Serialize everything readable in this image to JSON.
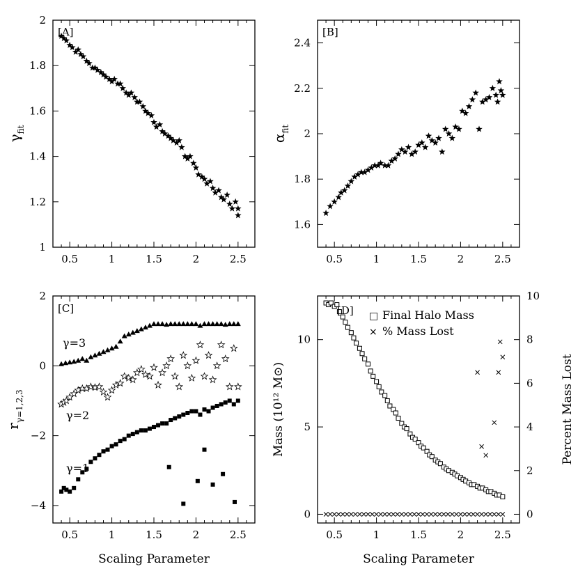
{
  "chart_data": [
    {
      "panel": "A",
      "type": "scatter",
      "label": "[A]",
      "xlabel": "",
      "ylabel": "γ_fit",
      "ylabel_main": "γ",
      "ylabel_sub": "fit",
      "xlim": [
        0.3,
        2.7
      ],
      "ylim": [
        1.0,
        2.0
      ],
      "xticks": [
        0.5,
        1,
        1.5,
        2,
        2.5
      ],
      "xtick_labels": [
        "0.5",
        "1",
        "1.5",
        "2",
        "2.5"
      ],
      "yticks": [
        1,
        1.2,
        1.4,
        1.6,
        1.8,
        2
      ],
      "ytick_labels": [
        "1",
        "1.2",
        "1.4",
        "1.6",
        "1.8",
        "2"
      ],
      "series": [
        {
          "name": "gamma_fit",
          "marker": "star",
          "x": [
            0.4,
            0.43,
            0.46,
            0.5,
            0.53,
            0.57,
            0.6,
            0.63,
            0.66,
            0.7,
            0.73,
            0.77,
            0.8,
            0.83,
            0.87,
            0.9,
            0.93,
            0.97,
            1.0,
            1.03,
            1.07,
            1.1,
            1.13,
            1.17,
            1.2,
            1.23,
            1.27,
            1.3,
            1.33,
            1.37,
            1.4,
            1.43,
            1.47,
            1.5,
            1.53,
            1.57,
            1.6,
            1.63,
            1.67,
            1.7,
            1.73,
            1.77,
            1.8,
            1.83,
            1.87,
            1.9,
            1.93,
            1.97,
            2.0,
            2.03,
            2.07,
            2.1,
            2.13,
            2.17,
            2.2,
            2.23,
            2.27,
            2.3,
            2.33,
            2.37,
            2.4,
            2.43,
            2.47,
            2.5,
            2.5
          ],
          "y": [
            1.93,
            1.92,
            1.91,
            1.89,
            1.88,
            1.86,
            1.87,
            1.85,
            1.84,
            1.82,
            1.81,
            1.79,
            1.79,
            1.78,
            1.77,
            1.76,
            1.75,
            1.74,
            1.73,
            1.74,
            1.72,
            1.72,
            1.7,
            1.68,
            1.67,
            1.68,
            1.66,
            1.64,
            1.64,
            1.62,
            1.6,
            1.59,
            1.58,
            1.55,
            1.53,
            1.54,
            1.51,
            1.5,
            1.49,
            1.48,
            1.47,
            1.46,
            1.47,
            1.44,
            1.4,
            1.39,
            1.4,
            1.37,
            1.35,
            1.32,
            1.31,
            1.3,
            1.28,
            1.29,
            1.26,
            1.24,
            1.25,
            1.22,
            1.21,
            1.23,
            1.19,
            1.17,
            1.2,
            1.14,
            1.17
          ]
        }
      ]
    },
    {
      "panel": "B",
      "type": "scatter",
      "label": "[B]",
      "xlabel": "",
      "ylabel": "α_fit",
      "ylabel_main": "α",
      "ylabel_sub": "fit",
      "xlim": [
        0.3,
        2.7
      ],
      "ylim": [
        1.5,
        2.5
      ],
      "xticks": [
        0.5,
        1,
        1.5,
        2,
        2.5
      ],
      "xtick_labels": [
        "0.5",
        "1",
        "1.5",
        "2",
        "2.5"
      ],
      "yticks": [
        1.6,
        1.8,
        2.0,
        2.2,
        2.4
      ],
      "ytick_labels": [
        "1.6",
        "1.8",
        "2",
        "2.2",
        "2.4"
      ],
      "series": [
        {
          "name": "alpha_fit",
          "marker": "star",
          "x": [
            0.4,
            0.45,
            0.5,
            0.55,
            0.58,
            0.62,
            0.66,
            0.7,
            0.74,
            0.78,
            0.82,
            0.86,
            0.9,
            0.94,
            0.98,
            1.02,
            1.05,
            1.1,
            1.14,
            1.18,
            1.22,
            1.26,
            1.3,
            1.34,
            1.38,
            1.42,
            1.46,
            1.5,
            1.54,
            1.58,
            1.62,
            1.66,
            1.7,
            1.74,
            1.78,
            1.82,
            1.86,
            1.9,
            1.94,
            1.98,
            2.02,
            2.06,
            2.1,
            2.14,
            2.18,
            2.22,
            2.26,
            2.3,
            2.34,
            2.38,
            2.42,
            2.46,
            2.5,
            2.48,
            2.44
          ],
          "y": [
            1.65,
            1.68,
            1.7,
            1.72,
            1.74,
            1.75,
            1.77,
            1.79,
            1.81,
            1.82,
            1.83,
            1.83,
            1.84,
            1.85,
            1.86,
            1.86,
            1.87,
            1.86,
            1.86,
            1.88,
            1.89,
            1.91,
            1.93,
            1.92,
            1.94,
            1.91,
            1.92,
            1.95,
            1.96,
            1.94,
            1.99,
            1.97,
            1.96,
            1.98,
            1.92,
            2.02,
            2.0,
            1.98,
            2.03,
            2.02,
            2.1,
            2.09,
            2.12,
            2.15,
            2.18,
            2.02,
            2.14,
            2.15,
            2.16,
            2.2,
            2.17,
            2.23,
            2.17,
            2.19,
            2.14
          ]
        }
      ]
    },
    {
      "panel": "C",
      "type": "scatter",
      "label": "[C]",
      "xlabel": "Scaling Parameter",
      "ylabel": "r_γ=1,2,3",
      "ylabel_main": "r",
      "ylabel_sub": "γ=1,2,3",
      "xlim": [
        0.3,
        2.7
      ],
      "ylim": [
        -4.5,
        2.0
      ],
      "xticks": [
        0.5,
        1,
        1.5,
        2,
        2.5
      ],
      "xtick_labels": [
        "0.5",
        "1",
        "1.5",
        "2",
        "2.5"
      ],
      "yticks": [
        -4,
        -2,
        0,
        2
      ],
      "ytick_labels": [
        "−4",
        "−2",
        "0",
        "2"
      ],
      "annotations": [
        {
          "text": "γ=3",
          "x": 0.45,
          "y": 0.55
        },
        {
          "text": "γ=2",
          "x": 0.55,
          "y": -1.55
        },
        {
          "text": "γ=1",
          "x": 0.55,
          "y": -3.05
        }
      ],
      "series": [
        {
          "name": "γ=3",
          "marker": "triangle",
          "x": [
            0.4,
            0.45,
            0.5,
            0.55,
            0.6,
            0.65,
            0.7,
            0.75,
            0.8,
            0.85,
            0.9,
            0.95,
            1.0,
            1.05,
            1.1,
            1.15,
            1.2,
            1.25,
            1.3,
            1.35,
            1.4,
            1.45,
            1.5,
            1.55,
            1.6,
            1.65,
            1.7,
            1.75,
            1.8,
            1.85,
            1.9,
            1.95,
            2.0,
            2.05,
            2.1,
            2.15,
            2.2,
            2.25,
            2.3,
            2.35,
            2.4,
            2.45,
            2.5
          ],
          "y": [
            0.05,
            0.08,
            0.1,
            0.12,
            0.15,
            0.2,
            0.15,
            0.25,
            0.3,
            0.35,
            0.4,
            0.45,
            0.5,
            0.55,
            0.7,
            0.85,
            0.9,
            0.95,
            1.0,
            1.05,
            1.1,
            1.15,
            1.2,
            1.2,
            1.2,
            1.18,
            1.2,
            1.2,
            1.2,
            1.2,
            1.2,
            1.2,
            1.2,
            1.15,
            1.2,
            1.2,
            1.2,
            1.2,
            1.2,
            1.18,
            1.2,
            1.2,
            1.2
          ]
        },
        {
          "name": "γ=2",
          "marker": "open-star",
          "x": [
            0.4,
            0.43,
            0.46,
            0.5,
            0.55,
            0.6,
            0.65,
            0.7,
            0.75,
            0.8,
            0.85,
            0.9,
            0.95,
            1.0,
            1.05,
            1.1,
            1.15,
            1.2,
            1.25,
            1.3,
            1.35,
            1.4,
            1.45,
            1.5,
            1.55,
            1.6,
            1.65,
            1.7,
            1.75,
            1.8,
            1.85,
            1.9,
            1.95,
            2.0,
            2.05,
            2.1,
            2.15,
            2.2,
            2.25,
            2.3,
            2.35,
            2.4,
            2.45,
            2.5
          ],
          "y": [
            -1.1,
            -1.05,
            -1.0,
            -0.9,
            -0.8,
            -0.7,
            -0.65,
            -0.65,
            -0.6,
            -0.62,
            -0.6,
            -0.75,
            -0.9,
            -0.7,
            -0.55,
            -0.5,
            -0.3,
            -0.35,
            -0.4,
            -0.2,
            -0.1,
            -0.25,
            -0.3,
            -0.05,
            -0.55,
            -0.2,
            0.0,
            0.2,
            -0.3,
            -0.6,
            0.3,
            0.0,
            -0.35,
            0.15,
            0.6,
            -0.3,
            0.3,
            -0.4,
            0.0,
            0.6,
            0.2,
            -0.6,
            0.5,
            -0.6
          ]
        },
        {
          "name": "γ=1",
          "marker": "square",
          "x": [
            0.4,
            0.43,
            0.46,
            0.5,
            0.55,
            0.6,
            0.65,
            0.7,
            0.75,
            0.8,
            0.85,
            0.9,
            0.95,
            1.0,
            1.05,
            1.1,
            1.15,
            1.2,
            1.25,
            1.3,
            1.35,
            1.4,
            1.45,
            1.5,
            1.55,
            1.6,
            1.65,
            1.7,
            1.75,
            1.8,
            1.85,
            1.9,
            1.95,
            2.0,
            2.05,
            2.1,
            2.15,
            2.2,
            2.25,
            2.3,
            2.35,
            2.4,
            2.45,
            2.5,
            1.68,
            1.85,
            2.02,
            2.1,
            2.2,
            2.32,
            2.46
          ],
          "y": [
            -3.6,
            -3.5,
            -3.55,
            -3.6,
            -3.5,
            -3.25,
            -3.05,
            -2.95,
            -2.75,
            -2.65,
            -2.55,
            -2.45,
            -2.4,
            -2.3,
            -2.25,
            -2.15,
            -2.1,
            -2.0,
            -1.95,
            -1.9,
            -1.85,
            -1.85,
            -1.8,
            -1.75,
            -1.7,
            -1.65,
            -1.65,
            -1.55,
            -1.5,
            -1.45,
            -1.4,
            -1.35,
            -1.3,
            -1.3,
            -1.4,
            -1.25,
            -1.3,
            -1.2,
            -1.15,
            -1.1,
            -1.05,
            -1.0,
            -1.1,
            -1.0,
            -2.9,
            -3.95,
            -3.3,
            -2.4,
            -3.4,
            -3.1,
            -3.9
          ]
        }
      ]
    },
    {
      "panel": "D",
      "type": "scatter",
      "label": "[D]",
      "xlabel": "Scaling Parameter",
      "ylabel": "Mass (10¹² M⊙)",
      "ylabel_right": "Percent Mass Lost",
      "xlim": [
        0.3,
        2.7
      ],
      "ylim": [
        -0.5,
        12.5
      ],
      "ylim_right": [
        -0.4,
        10.0
      ],
      "xticks": [
        0.5,
        1,
        1.5,
        2,
        2.5
      ],
      "xtick_labels": [
        "0.5",
        "1",
        "1.5",
        "2",
        "2.5"
      ],
      "yticks": [
        0,
        5,
        10
      ],
      "ytick_labels": [
        "0",
        "5",
        "10"
      ],
      "yticks_right": [
        0,
        2,
        4,
        6,
        8,
        10
      ],
      "ytick_labels_right": [
        "0",
        "2",
        "4",
        "6",
        "8",
        "10"
      ],
      "legend": [
        {
          "marker": "□",
          "label": "Final Halo Mass"
        },
        {
          "marker": "×",
          "label": "% Mass Lost"
        }
      ],
      "series": [
        {
          "name": "Final Halo Mass",
          "marker": "open-square",
          "axis": "left",
          "x": [
            0.4,
            0.43,
            0.46,
            0.5,
            0.53,
            0.56,
            0.6,
            0.63,
            0.66,
            0.7,
            0.73,
            0.76,
            0.8,
            0.83,
            0.86,
            0.9,
            0.93,
            0.96,
            1.0,
            1.03,
            1.06,
            1.1,
            1.13,
            1.16,
            1.2,
            1.23,
            1.26,
            1.3,
            1.33,
            1.36,
            1.4,
            1.43,
            1.46,
            1.5,
            1.53,
            1.56,
            1.6,
            1.63,
            1.66,
            1.7,
            1.73,
            1.76,
            1.8,
            1.83,
            1.86,
            1.9,
            1.93,
            1.96,
            2.0,
            2.03,
            2.06,
            2.1,
            2.13,
            2.16,
            2.2,
            2.23,
            2.26,
            2.3,
            2.33,
            2.36,
            2.4,
            2.43,
            2.46,
            2.5
          ],
          "y": [
            12.1,
            12.0,
            12.1,
            11.9,
            12.0,
            11.6,
            11.3,
            11.0,
            10.7,
            10.4,
            10.1,
            9.8,
            9.5,
            9.2,
            8.9,
            8.6,
            8.2,
            7.9,
            7.6,
            7.3,
            7.0,
            6.8,
            6.5,
            6.2,
            6.0,
            5.8,
            5.5,
            5.2,
            5.0,
            4.9,
            4.6,
            4.4,
            4.3,
            4.1,
            3.9,
            3.8,
            3.6,
            3.4,
            3.3,
            3.1,
            3.0,
            2.9,
            2.7,
            2.6,
            2.5,
            2.4,
            2.3,
            2.2,
            2.1,
            2.0,
            1.9,
            1.8,
            1.7,
            1.7,
            1.6,
            1.5,
            1.5,
            1.4,
            1.3,
            1.3,
            1.2,
            1.1,
            1.1,
            1.0
          ]
        },
        {
          "name": "% Mass Lost",
          "marker": "cross",
          "axis": "right",
          "x": [
            0.4,
            0.45,
            0.5,
            0.55,
            0.6,
            0.65,
            0.7,
            0.75,
            0.8,
            0.85,
            0.9,
            0.95,
            1.0,
            1.05,
            1.1,
            1.15,
            1.2,
            1.25,
            1.3,
            1.35,
            1.4,
            1.45,
            1.5,
            1.55,
            1.6,
            1.65,
            1.7,
            1.75,
            1.8,
            1.85,
            1.9,
            1.95,
            2.0,
            2.05,
            2.1,
            2.15,
            2.2,
            2.25,
            2.3,
            2.35,
            2.4,
            2.45,
            2.5,
            2.2,
            2.25,
            2.3,
            2.4,
            2.45,
            2.47,
            2.5
          ],
          "y": [
            0,
            0,
            0,
            0,
            0,
            0,
            0,
            0,
            0,
            0,
            0,
            0,
            0,
            0,
            0,
            0,
            0,
            0,
            0,
            0,
            0,
            0,
            0,
            0,
            0,
            0,
            0,
            0,
            0,
            0,
            0,
            0,
            0,
            0,
            0,
            0,
            0,
            0,
            0,
            0,
            0,
            0,
            0,
            6.5,
            3.1,
            2.7,
            4.2,
            6.5,
            7.9,
            7.2
          ]
        }
      ]
    }
  ]
}
